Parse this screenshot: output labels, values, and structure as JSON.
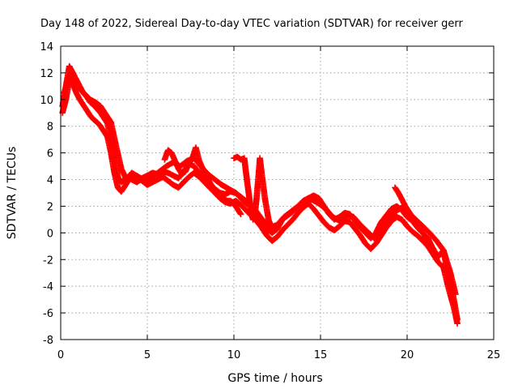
{
  "chart_data": {
    "type": "scatter",
    "title": "Day 148 of 2022, Sidereal Day-to-day VTEC variation (SDTVAR) for receiver gerr",
    "xlabel": "GPS time / hours",
    "ylabel": "SDTVAR / TECUs",
    "xlim": [
      0,
      25
    ],
    "ylim": [
      -8,
      14
    ],
    "xticks": [
      0,
      5,
      10,
      15,
      20,
      25
    ],
    "yticks": [
      -8,
      -6,
      -4,
      -2,
      0,
      2,
      4,
      6,
      8,
      10,
      12,
      14
    ],
    "grid": true,
    "legend": "none",
    "marker": "plus",
    "color": "#ff0000",
    "series": [
      {
        "name": "trace-a",
        "x": [
          0.1,
          0.3,
          0.5,
          0.7,
          0.9,
          1.1,
          1.3,
          1.5,
          1.7,
          1.9,
          2.1,
          2.3,
          2.5,
          2.7,
          2.9,
          3.1,
          3.3,
          3.5,
          3.7,
          3.9,
          4.1,
          4.4,
          4.7,
          5.0,
          5.3,
          5.6,
          5.9,
          6.2,
          6.5,
          6.8,
          7.1,
          7.4,
          7.7,
          8.0,
          8.3,
          8.6,
          8.9,
          9.2,
          9.5,
          9.8,
          10.1,
          10.4,
          10.7,
          11.0,
          11.3,
          11.6,
          11.9,
          12.2,
          12.5,
          12.8,
          13.1,
          13.4,
          13.7,
          14.0,
          14.3,
          14.6,
          14.9,
          15.2,
          15.5,
          15.8,
          16.1,
          16.4,
          16.7,
          17.0,
          17.3,
          17.6,
          17.9,
          18.2,
          18.5,
          18.8,
          19.1,
          19.4,
          19.7,
          20.0,
          20.3,
          20.6,
          20.9,
          21.2,
          21.5,
          21.8,
          22.1,
          22.4,
          22.7,
          22.9
        ],
        "y": [
          9.5,
          11.0,
          12.5,
          12.0,
          11.5,
          11.0,
          10.5,
          10.2,
          9.8,
          9.6,
          9.3,
          9.0,
          8.6,
          8.2,
          7.0,
          5.5,
          4.2,
          3.8,
          4.0,
          4.2,
          4.0,
          3.8,
          4.1,
          4.3,
          4.5,
          4.4,
          4.6,
          4.5,
          4.3,
          4.1,
          4.6,
          5.2,
          5.0,
          4.5,
          4.0,
          3.6,
          3.3,
          3.0,
          2.9,
          3.1,
          3.0,
          2.6,
          2.2,
          2.0,
          1.5,
          0.8,
          0.3,
          0.0,
          0.3,
          1.0,
          1.3,
          1.6,
          2.0,
          2.4,
          2.6,
          2.8,
          2.6,
          2.0,
          1.4,
          1.0,
          1.2,
          1.5,
          1.4,
          0.9,
          0.4,
          0.0,
          -0.4,
          0.0,
          0.8,
          1.3,
          1.8,
          2.0,
          1.7,
          1.2,
          0.9,
          0.4,
          0.0,
          -0.4,
          -1.2,
          -1.8,
          -1.3,
          -3.5,
          -5.0,
          -6.5
        ]
      },
      {
        "name": "trace-b",
        "x": [
          0.1,
          0.3,
          0.5,
          0.7,
          0.9,
          1.1,
          1.3,
          1.5,
          1.7,
          1.9,
          2.1,
          2.3,
          2.5,
          2.7,
          2.9,
          3.1,
          3.3,
          3.5,
          3.7,
          3.9,
          4.1,
          4.4,
          4.7,
          5.0,
          5.3,
          5.6,
          5.9,
          6.2,
          6.5,
          6.8,
          7.1,
          7.4,
          7.7,
          8.0,
          8.3,
          8.6,
          8.9,
          9.2,
          9.5,
          9.8,
          10.1,
          10.4,
          10.7,
          11.0,
          11.3,
          11.6,
          11.9,
          12.2,
          12.5,
          12.8,
          13.1,
          13.4,
          13.7,
          14.0,
          14.3,
          14.6,
          14.9,
          15.2,
          15.5,
          15.8,
          16.1,
          16.4,
          16.7,
          17.0,
          17.3,
          17.6,
          17.9,
          18.2,
          18.5,
          18.8,
          19.1,
          19.4,
          19.7,
          20.0,
          20.3,
          20.6,
          20.9,
          21.2,
          21.5,
          21.8,
          22.1,
          22.4,
          22.7,
          22.9
        ],
        "y": [
          9.0,
          10.0,
          11.5,
          11.2,
          10.5,
          10.0,
          9.6,
          9.2,
          8.8,
          8.5,
          8.3,
          8.0,
          7.6,
          7.2,
          6.0,
          4.5,
          3.4,
          3.1,
          3.5,
          3.9,
          4.2,
          4.1,
          3.9,
          3.6,
          3.8,
          4.0,
          4.2,
          3.9,
          3.6,
          3.4,
          3.8,
          4.2,
          4.5,
          4.2,
          3.8,
          3.4,
          3.0,
          2.6,
          2.3,
          2.2,
          2.4,
          2.1,
          1.7,
          1.3,
          0.9,
          0.4,
          -0.2,
          -0.6,
          -0.3,
          0.2,
          0.6,
          1.0,
          1.5,
          1.9,
          2.2,
          1.8,
          1.3,
          0.8,
          0.4,
          0.2,
          0.5,
          0.9,
          0.8,
          0.3,
          -0.2,
          -0.8,
          -1.2,
          -0.8,
          -0.2,
          0.4,
          0.9,
          1.2,
          1.0,
          0.5,
          0.1,
          -0.2,
          -0.6,
          -1.0,
          -1.6,
          -2.2,
          -2.6,
          -4.2,
          -5.6,
          -6.8
        ]
      },
      {
        "name": "trace-c",
        "x": [
          0.2,
          0.5,
          0.8,
          1.1,
          1.4,
          1.7,
          2.0,
          2.3,
          2.6,
          2.9,
          3.2,
          3.5,
          3.8,
          4.1,
          4.5,
          4.9,
          5.3,
          5.7,
          6.1,
          6.5,
          6.9,
          7.3,
          7.7,
          8.1,
          8.5,
          8.9,
          9.3,
          9.7,
          10.1,
          10.5,
          10.9,
          11.3,
          11.7,
          12.1,
          12.5,
          12.9,
          13.3,
          13.7,
          14.1,
          14.5,
          14.9,
          15.3,
          15.7,
          16.1,
          16.5,
          16.9,
          17.3,
          17.7,
          18.1,
          18.5,
          18.9,
          19.3,
          19.7,
          20.1,
          20.5,
          20.9,
          21.3,
          21.7,
          22.1,
          22.5,
          22.8
        ],
        "y": [
          10.5,
          11.8,
          11.3,
          10.8,
          10.4,
          10.0,
          9.8,
          9.5,
          8.9,
          8.3,
          6.5,
          4.8,
          4.0,
          4.5,
          4.2,
          3.9,
          4.2,
          4.6,
          5.0,
          5.3,
          5.0,
          5.4,
          5.6,
          5.0,
          4.4,
          4.0,
          3.6,
          3.3,
          3.0,
          2.6,
          2.2,
          1.6,
          0.9,
          0.4,
          0.6,
          1.2,
          1.6,
          2.0,
          2.3,
          2.5,
          2.2,
          1.8,
          1.2,
          0.9,
          1.3,
          1.2,
          0.6,
          0.1,
          -0.4,
          0.2,
          0.9,
          1.6,
          1.9,
          1.5,
          1.0,
          0.5,
          0.0,
          -0.6,
          -1.3,
          -3.0,
          -4.6
        ]
      },
      {
        "name": "trace-d",
        "x": [
          6.0,
          6.2,
          6.4,
          6.6,
          6.8,
          7.0,
          7.2,
          7.4,
          7.6,
          7.8,
          8.0,
          8.2,
          8.4,
          8.6,
          8.8,
          9.0,
          9.2,
          9.4,
          9.6,
          9.8,
          10.0,
          10.2,
          10.4
        ],
        "y": [
          5.5,
          6.2,
          6.0,
          5.4,
          4.8,
          4.4,
          4.6,
          5.2,
          5.6,
          6.4,
          5.4,
          4.8,
          4.2,
          3.8,
          3.4,
          3.0,
          2.8,
          2.6,
          2.4,
          2.4,
          2.2,
          1.8,
          1.4
        ]
      },
      {
        "name": "trace-e",
        "x": [
          10.0,
          10.2,
          10.4,
          10.6,
          10.7,
          10.8,
          10.9,
          11.0,
          11.1,
          11.2,
          11.3,
          11.4,
          11.5,
          11.6,
          11.8,
          12.0,
          12.2
        ],
        "y": [
          5.6,
          5.7,
          5.5,
          5.6,
          4.5,
          3.5,
          2.5,
          1.5,
          1.0,
          1.2,
          2.5,
          4.0,
          5.6,
          4.5,
          2.5,
          1.0,
          0.3
        ]
      },
      {
        "name": "trace-f",
        "x": [
          19.3,
          19.5,
          19.7,
          19.9,
          20.1,
          20.3,
          20.5,
          20.7,
          20.9,
          21.1,
          21.3,
          21.5
        ],
        "y": [
          3.4,
          3.0,
          2.5,
          2.0,
          1.6,
          1.2,
          0.8,
          0.4,
          0.0,
          -0.4,
          -0.8,
          -1.2
        ]
      }
    ]
  }
}
